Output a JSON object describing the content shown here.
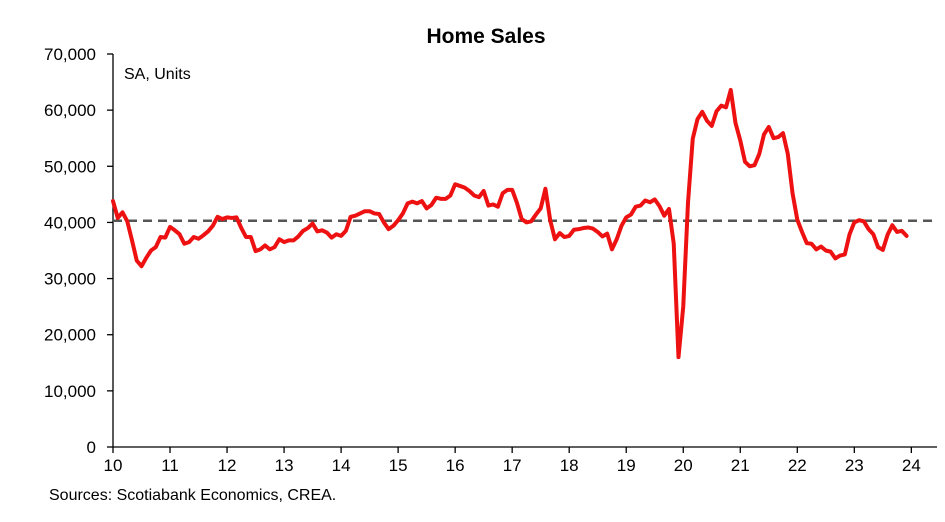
{
  "chart_data": {
    "type": "line",
    "title": "Home Sales",
    "annotation": "SA, Units",
    "source": "Sources: Scotiabank Economics, CREA.",
    "xlabel": "",
    "ylabel": "",
    "xlim": [
      2010,
      2024.45
    ],
    "ylim": [
      0,
      70000
    ],
    "y_ticks": [
      0,
      10000,
      20000,
      30000,
      40000,
      50000,
      60000,
      70000
    ],
    "y_tick_labels": [
      "0",
      "10,000",
      "20,000",
      "30,000",
      "40,000",
      "50,000",
      "60,000",
      "70,000"
    ],
    "x_ticks": [
      2010,
      2011,
      2012,
      2013,
      2014,
      2015,
      2016,
      2017,
      2018,
      2019,
      2020,
      2021,
      2022,
      2023,
      2024
    ],
    "x_tick_labels": [
      "10",
      "11",
      "12",
      "13",
      "14",
      "15",
      "16",
      "17",
      "18",
      "19",
      "20",
      "21",
      "22",
      "23",
      "24"
    ],
    "reference_line": {
      "value": 40300,
      "style": "dashed",
      "color": "#555555"
    },
    "grid": false,
    "colors": {
      "series": "#ee1111",
      "axis": "#000000"
    },
    "series": [
      {
        "start_year": 2010,
        "start_month": 1,
        "frequency": "monthly",
        "values": [
          43800,
          40800,
          41800,
          40200,
          36800,
          33200,
          32200,
          33700,
          35000,
          35600,
          37400,
          37300,
          39200,
          38600,
          37900,
          36200,
          36500,
          37400,
          37100,
          37700,
          38400,
          39400,
          41000,
          40600,
          40900,
          40800,
          40900,
          39000,
          37400,
          37400,
          34900,
          35200,
          35900,
          35200,
          35600,
          37000,
          36500,
          36800,
          36800,
          37500,
          38500,
          39000,
          39800,
          38400,
          38600,
          38200,
          37300,
          37900,
          37600,
          38500,
          41000,
          41200,
          41600,
          42000,
          42000,
          41600,
          41500,
          40000,
          38800,
          39400,
          40400,
          41600,
          43400,
          43700,
          43400,
          43800,
          42500,
          43100,
          44400,
          44200,
          44200,
          44800,
          46800,
          46500,
          46200,
          45600,
          44800,
          44500,
          45600,
          43000,
          43200,
          42800,
          45200,
          45800,
          45800,
          43500,
          40600,
          40000,
          40200,
          41400,
          42500,
          46000,
          40400,
          37000,
          38100,
          37400,
          37600,
          38700,
          38800,
          39000,
          39100,
          38900,
          38300,
          37500,
          38000,
          35200,
          37000,
          39400,
          40900,
          41400,
          42800,
          43000,
          43900,
          43600,
          44100,
          42900,
          41200,
          42400,
          36200,
          16000,
          25000,
          43500,
          54900,
          58400,
          59700,
          58100,
          57200,
          59800,
          60800,
          60500,
          63600,
          57700,
          54600,
          50800,
          50000,
          50200,
          52200,
          55700,
          57000,
          55000,
          55200,
          55900,
          52200,
          45200,
          40500,
          38300,
          36300,
          36200,
          35200,
          35700,
          35000,
          34800,
          33600,
          34100,
          34300,
          37900,
          40000,
          40400,
          40200,
          38800,
          37900,
          35600,
          35100,
          37800,
          39500,
          38300,
          38500,
          37600
        ]
      }
    ]
  }
}
